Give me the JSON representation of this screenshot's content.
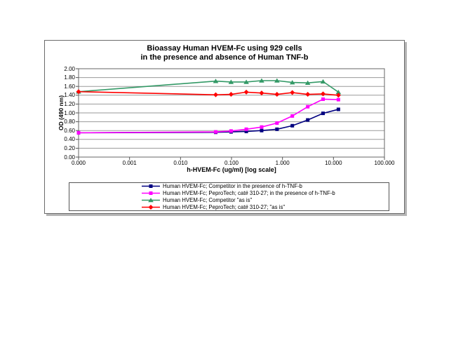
{
  "chart_data": {
    "type": "line",
    "title": "Bioassay Human HVEM-Fc using 929 cells in the presence and absence of Human TNF-b",
    "title_line1": "Bioassay Human HVEM-Fc using 929 cells",
    "title_line2": "in the presence and absence of Human TNF-b",
    "xlabel": "h-HVEM-Fc (ug/ml) [log scale]",
    "ylabel": "OD (490 nm)",
    "x_scale": "log",
    "grid": true,
    "legend_position": "bottom",
    "ylim": [
      0.0,
      2.0
    ],
    "y_tick_labels": [
      "2.00",
      "1.80",
      "1.60",
      "1.40",
      "1.20",
      "1.00",
      "0.80",
      "0.60",
      "0.40",
      "0.20",
      "0.00"
    ],
    "x_tick_labels": [
      "0.000",
      "0.001",
      "0.010",
      "0.100",
      "1.000",
      "10.000",
      "100.000"
    ],
    "x_tick_values": [
      0,
      0.001,
      0.01,
      0.1,
      1,
      10,
      100
    ],
    "x": [
      0,
      0.049,
      0.098,
      0.195,
      0.39,
      0.78,
      1.56,
      3.13,
      6.25,
      12.5
    ],
    "series": [
      {
        "name": "Human HVEM-Fc; Competitor in the presence of h-TNF-b",
        "color": "#000080",
        "marker": "square",
        "values": [
          0.55,
          0.56,
          0.57,
          0.58,
          0.6,
          0.63,
          0.71,
          0.84,
          0.99,
          1.08
        ]
      },
      {
        "name": "Human HVEM-Fc; PeproTech; cat# 310-27; in the presence of h-TNF-b",
        "color": "#FF00FF",
        "marker": "square",
        "values": [
          0.55,
          0.57,
          0.59,
          0.63,
          0.68,
          0.77,
          0.93,
          1.14,
          1.31,
          1.3
        ]
      },
      {
        "name": "Human HVEM-Fc; Competitor \"as is\"",
        "color": "#339966",
        "marker": "triangle",
        "values": [
          1.48,
          1.72,
          1.7,
          1.7,
          1.73,
          1.73,
          1.69,
          1.68,
          1.71,
          1.47
        ]
      },
      {
        "name": "Human HVEM-Fc; PeproTech; cat# 310-27;  \"as is\"",
        "color": "#FF0000",
        "marker": "diamond",
        "values": [
          1.48,
          1.41,
          1.42,
          1.47,
          1.45,
          1.42,
          1.46,
          1.42,
          1.43,
          1.4
        ]
      }
    ],
    "colors": {
      "gridline": "#9a9a9a",
      "plot_border": "#666666",
      "axis_tick": "#555555",
      "background": "#ffffff"
    }
  }
}
